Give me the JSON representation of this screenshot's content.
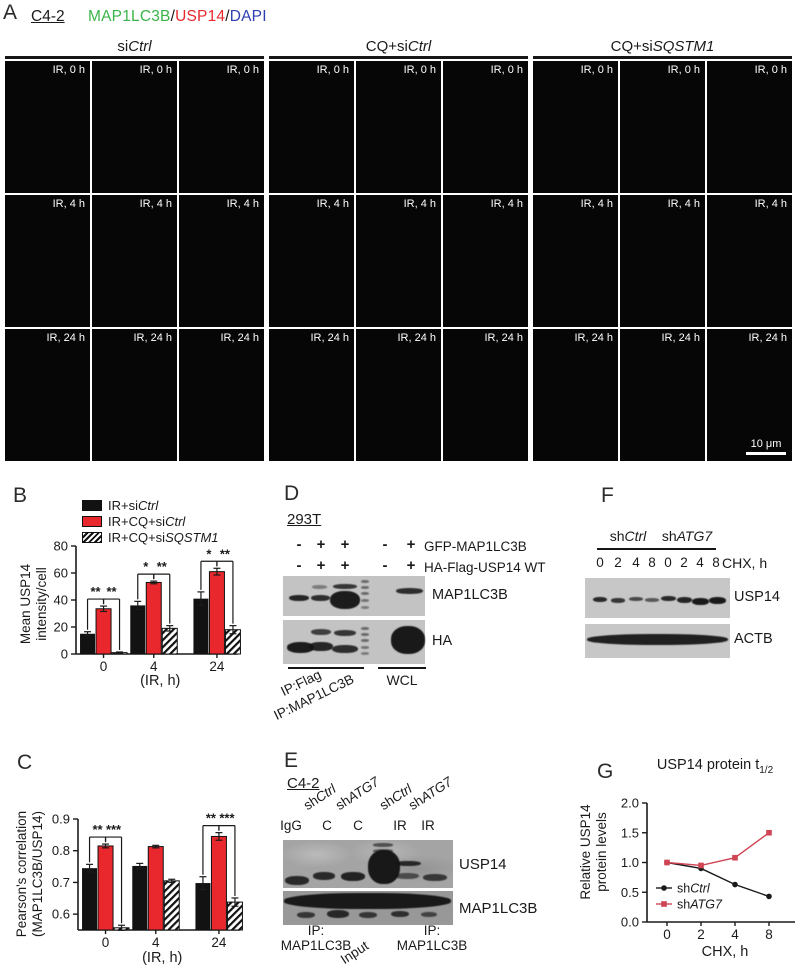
{
  "panelA": {
    "label": "A",
    "cell_line": "C4-2",
    "stains": [
      {
        "t": "MAP1LC3B",
        "c": "#3cb44a"
      },
      {
        "t": "/",
        "c": "#1a1a1a"
      },
      {
        "t": "USP14",
        "c": "#e8282d"
      },
      {
        "t": "/",
        "c": "#1a1a1a"
      },
      {
        "t": "DAPI",
        "c": "#2e3fb0"
      }
    ],
    "groups": [
      {
        "title_parts": [
          {
            "t": "si"
          },
          {
            "t": "Ctrl",
            "i": true
          }
        ]
      },
      {
        "title_parts": [
          {
            "t": "CQ+si"
          },
          {
            "t": "Ctrl",
            "i": true
          }
        ]
      },
      {
        "title_parts": [
          {
            "t": "CQ+si"
          },
          {
            "t": "SQSTM1",
            "i": true
          }
        ]
      }
    ],
    "row_labels": [
      "IR, 0 h",
      "IR, 4 h",
      "IR, 24 h"
    ],
    "scale_bar_label": "10 μm",
    "tiles": [
      {
        "label": "IR, 0 h",
        "scene": "green-a"
      },
      {
        "label": "IR, 0 h",
        "scene": "red-dim"
      },
      {
        "label": "IR, 0 h",
        "scene": "merge-green"
      },
      {
        "label": "IR, 0 h",
        "scene": "green-a"
      },
      {
        "label": "IR, 0 h",
        "scene": "red-bright"
      },
      {
        "label": "IR, 0 h",
        "scene": "merge-yellow"
      },
      {
        "label": "IR, 0 h",
        "scene": "blue"
      },
      {
        "label": "IR, 0 h",
        "scene": "blue"
      },
      {
        "label": "IR, 0 h",
        "scene": "blue"
      },
      {
        "label": "IR, 4 h",
        "scene": "green-a"
      },
      {
        "label": "IR, 4 h",
        "scene": "red-dim"
      },
      {
        "label": "IR, 4 h",
        "scene": "merge-green"
      },
      {
        "label": "IR, 4 h",
        "scene": "green-b"
      },
      {
        "label": "IR, 4 h",
        "scene": "red-bright"
      },
      {
        "label": "IR, 4 h",
        "scene": "merge-yellow"
      },
      {
        "label": "IR, 4 h",
        "scene": "blue"
      },
      {
        "label": "IR, 4 h",
        "scene": "blue-red"
      },
      {
        "label": "IR, 4 h",
        "scene": "blue-red"
      },
      {
        "label": "IR, 24 h",
        "scene": "green-a"
      },
      {
        "label": "IR, 24 h",
        "scene": "red-dim"
      },
      {
        "label": "IR, 24 h",
        "scene": "merge-green"
      },
      {
        "label": "IR, 24 h",
        "scene": "green-b"
      },
      {
        "label": "IR, 24 h",
        "scene": "red-bright"
      },
      {
        "label": "IR, 24 h",
        "scene": "merge-yellow"
      },
      {
        "label": "IR, 24 h",
        "scene": "blue-green"
      },
      {
        "label": "IR, 24 h",
        "scene": "blue-red"
      },
      {
        "label": "IR, 24 h",
        "scene": "blue-red-merge"
      }
    ]
  },
  "panelB": {
    "label": "B",
    "legend": [
      {
        "style": "black",
        "label_parts": [
          {
            "t": "IR+si"
          },
          {
            "t": "Ctrl",
            "i": true
          }
        ]
      },
      {
        "style": "red",
        "label_parts": [
          {
            "t": "IR+CQ+si"
          },
          {
            "t": "Ctrl",
            "i": true
          }
        ]
      },
      {
        "style": "hatched",
        "label_parts": [
          {
            "t": "IR+CQ+si"
          },
          {
            "t": "SQSTM1",
            "i": true
          }
        ]
      }
    ]
  },
  "panelC": {
    "label": "C"
  },
  "panelD": {
    "label": "D",
    "cell_line": "293T",
    "condition_rows": [
      {
        "label": "GFP-MAP1LC3B",
        "values": [
          "-",
          "+",
          "+",
          "-",
          "+"
        ]
      },
      {
        "label": "HA-Flag-USP14 WT",
        "values": [
          "-",
          "+",
          "+",
          "-",
          "+"
        ]
      }
    ],
    "blot_labels": [
      "MAP1LC3B",
      "HA"
    ],
    "ip_labels": [
      "IP:Flag",
      "IP:MAP1LC3B"
    ],
    "wcl_label": "WCL"
  },
  "panelE": {
    "label": "E",
    "cell_line": "C4-2",
    "sh_headers": [
      [
        {
          "t": "sh"
        },
        {
          "t": "Ctrl",
          "i": true
        }
      ],
      [
        {
          "t": "sh"
        },
        {
          "t": "ATG7",
          "i": true
        }
      ],
      [
        {
          "t": "sh"
        },
        {
          "t": "Ctrl",
          "i": true
        }
      ],
      [
        {
          "t": "sh"
        },
        {
          "t": "ATG7",
          "i": true
        }
      ]
    ],
    "lanes": [
      "IgG",
      "C",
      "C",
      "IR",
      "IR"
    ],
    "blot_labels": [
      "USP14",
      "MAP1LC3B"
    ],
    "bottom": {
      "ip1_line1": "IP:",
      "ip1_line2": "MAP1LC3B",
      "input": "Input",
      "ip2_line1": "IP:",
      "ip2_line2": "MAP1LC3B"
    }
  },
  "panelF": {
    "label": "F",
    "groups": [
      [
        {
          "t": "sh"
        },
        {
          "t": "Ctrl",
          "i": true
        }
      ],
      [
        {
          "t": "sh"
        },
        {
          "t": "ATG7",
          "i": true
        }
      ]
    ],
    "timepoints": [
      "0",
      "2",
      "4",
      "8"
    ],
    "time_unit": "CHX, h",
    "blot_labels": [
      "USP14",
      "ACTB"
    ]
  },
  "panelG": {
    "label": "G",
    "title": "USP14 protein t",
    "title_sub": "1/2"
  },
  "chart_data": [
    {
      "id": "B",
      "type": "bar",
      "ylabel": [
        "Mean USP14",
        "intensity/cell"
      ],
      "xlabel": "(IR, h)",
      "categories": [
        "0",
        "4",
        "24"
      ],
      "ylim": [
        0,
        80
      ],
      "yticks": [
        0,
        20,
        40,
        60,
        80
      ],
      "ytick_decimals": 0,
      "series": [
        {
          "name": "IR+siCtrl",
          "style": "black",
          "values": [
            15,
            36,
            41
          ],
          "errors": [
            1.5,
            3,
            5
          ]
        },
        {
          "name": "IR+CQ+siCtrl",
          "style": "red",
          "values": [
            33.5,
            53,
            61
          ],
          "errors": [
            2,
            1,
            2.5
          ]
        },
        {
          "name": "IR+CQ+siSQSTM1",
          "style": "hatched",
          "values": [
            1,
            19,
            18
          ],
          "errors": [
            0.5,
            2,
            3
          ]
        }
      ],
      "significance": [
        [
          "**",
          "**"
        ],
        [
          "*",
          "**"
        ],
        [
          "*",
          "**"
        ]
      ]
    },
    {
      "id": "C",
      "type": "bar",
      "ylabel": [
        "Pearson's correlation",
        "(MAP1LC3B/USP14)"
      ],
      "xlabel": "(IR, h)",
      "categories": [
        "0",
        "4",
        "24"
      ],
      "ylim": [
        0.55,
        0.9
      ],
      "yticks": [
        0.6,
        0.7,
        0.8,
        0.9
      ],
      "ytick_decimals": 1,
      "series": [
        {
          "name": "IR+siCtrl",
          "style": "black",
          "values": [
            0.745,
            0.752,
            0.698
          ],
          "errors": [
            0.012,
            0.008,
            0.02
          ]
        },
        {
          "name": "IR+CQ+siCtrl",
          "style": "red",
          "values": [
            0.815,
            0.813,
            0.845
          ],
          "errors": [
            0.006,
            0.004,
            0.012
          ]
        },
        {
          "name": "IR+CQ+siSQSTM1",
          "style": "hatched",
          "values": [
            0.557,
            0.705,
            0.638
          ],
          "errors": [
            0.008,
            0.005,
            0.013
          ]
        }
      ],
      "significance": [
        [
          "**",
          "***"
        ],
        null,
        [
          "**",
          "***"
        ]
      ]
    },
    {
      "id": "G",
      "type": "line",
      "title": "USP14 protein t1/2",
      "ylabel": [
        "Relative USP14",
        "protein levels"
      ],
      "xlabel": "CHX, h",
      "x": [
        "0",
        "2",
        "4",
        "8"
      ],
      "ylim": [
        0,
        2
      ],
      "yticks": [
        0,
        0.5,
        1,
        1.5,
        2
      ],
      "ytick_decimals": 1,
      "series": [
        {
          "name": "shCtrl",
          "name_parts": [
            {
              "t": "sh"
            },
            {
              "t": "Ctrl",
              "i": true
            }
          ],
          "color": "#1a1a1a",
          "marker": "circle",
          "values": [
            1.0,
            0.9,
            0.63,
            0.43
          ]
        },
        {
          "name": "shATG7",
          "name_parts": [
            {
              "t": "sh"
            },
            {
              "t": "ATG7",
              "i": true
            }
          ],
          "color": "#d04555",
          "marker": "square",
          "values": [
            1.0,
            0.95,
            1.08,
            1.5
          ]
        }
      ],
      "legend_position": "lower-left"
    }
  ]
}
